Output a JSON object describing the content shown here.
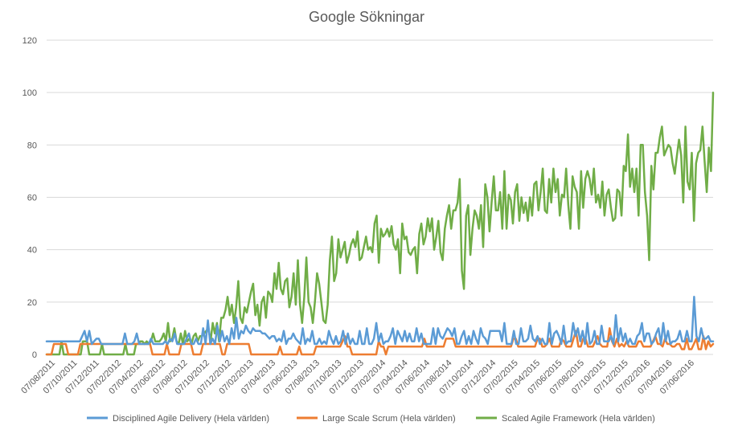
{
  "chart_data": {
    "type": "line",
    "title": "Google Sökningar",
    "xlabel": "",
    "ylabel": "",
    "ylim": [
      0,
      120
    ],
    "yticks": [
      "0",
      "20",
      "40",
      "60",
      "80",
      "100",
      "120"
    ],
    "grid": true,
    "legend_position": "bottom",
    "x_tick_labels": [
      "07/08/2011",
      "07/10/2011",
      "07/12/2011",
      "07/02/2012",
      "07/04/2012",
      "07/06/2012",
      "07/08/2012",
      "07/10/2012",
      "07/12/2012",
      "07/02/2013",
      "07/04/2013",
      "07/06/2013",
      "07/08/2013",
      "07/10/2013",
      "07/12/2013",
      "07/02/2014",
      "07/04/2014",
      "07/06/2014",
      "07/08/2014",
      "07/10/2014",
      "07/12/2014",
      "07/02/2015",
      "07/04/2015",
      "07/06/2015",
      "07/08/2015",
      "07/10/2015",
      "07/12/2015",
      "07/02/2016",
      "07/04/2016",
      "07/06/2016"
    ],
    "series": [
      {
        "name": "Disciplined Agile Delivery (Hela världen)",
        "color": "#5b9bd5",
        "values": [
          5,
          5,
          5,
          5,
          5,
          5,
          5,
          5,
          5,
          5,
          5,
          5,
          5,
          5,
          5,
          7,
          9,
          5,
          9,
          4,
          5,
          6,
          6,
          4,
          4,
          4,
          4,
          4,
          4,
          4,
          4,
          4,
          4,
          8,
          4,
          4,
          4,
          5,
          8,
          4,
          4,
          4,
          4,
          4,
          6,
          4,
          4,
          4,
          4,
          4,
          5,
          4,
          6,
          5,
          8,
          4,
          4,
          4,
          4,
          6,
          8,
          4,
          4,
          6,
          4,
          4,
          10,
          4,
          13,
          4,
          6,
          4,
          11,
          5,
          9,
          5,
          7,
          4,
          10,
          6,
          14,
          6,
          9,
          8,
          11,
          9,
          8,
          10,
          9,
          9,
          9,
          8,
          8,
          7,
          6,
          7,
          7,
          5,
          6,
          5,
          9,
          4,
          6,
          6,
          8,
          6,
          5,
          4,
          10,
          4,
          6,
          5,
          9,
          4,
          4,
          6,
          4,
          5,
          4,
          9,
          6,
          4,
          7,
          4,
          5,
          9,
          4,
          8,
          4,
          6,
          4,
          4,
          9,
          4,
          4,
          10,
          4,
          4,
          6,
          12,
          5,
          8,
          4,
          5,
          5,
          7,
          10,
          4,
          9,
          7,
          5,
          9,
          5,
          8,
          5,
          5,
          10,
          5,
          8,
          4,
          4,
          4,
          4,
          10,
          4,
          10,
          7,
          6,
          8,
          10,
          9,
          7,
          10,
          4,
          4,
          7,
          9,
          4,
          7,
          4,
          9,
          6,
          4,
          10,
          7,
          6,
          4,
          9,
          9,
          9,
          9,
          9,
          5,
          12,
          4,
          4,
          4,
          9,
          4,
          4,
          10,
          5,
          5,
          6,
          11,
          6,
          5,
          7,
          4,
          6,
          4,
          4,
          12,
          4,
          8,
          9,
          7,
          4,
          11,
          4,
          5,
          5,
          12,
          7,
          10,
          5,
          9,
          4,
          12,
          4,
          5,
          9,
          4,
          4,
          11,
          5,
          5,
          5,
          7,
          4,
          15,
          5,
          10,
          5,
          8,
          4,
          6,
          4,
          4,
          7,
          8,
          12,
          5,
          8,
          8,
          4,
          5,
          8,
          10,
          4,
          12,
          5,
          9,
          4,
          5,
          5,
          6,
          9,
          5,
          5,
          9,
          5,
          5,
          22,
          7,
          5,
          10,
          6,
          6,
          7,
          5,
          5
        ]
      },
      {
        "name": "Large Scale Scrum (Hela världen)",
        "color": "#ed7d31",
        "values": [
          0,
          0,
          0,
          4,
          4,
          4,
          4,
          4,
          4,
          0,
          0,
          0,
          0,
          0,
          4,
          4,
          4,
          4,
          4,
          4,
          4,
          4,
          4,
          4,
          4,
          4,
          4,
          4,
          4,
          4,
          4,
          4,
          4,
          4,
          4,
          4,
          4,
          4,
          4,
          4,
          4,
          4,
          4,
          4,
          0,
          0,
          0,
          0,
          0,
          0,
          4,
          0,
          0,
          0,
          0,
          0,
          4,
          4,
          4,
          4,
          4,
          0,
          0,
          0,
          0,
          4,
          4,
          4,
          4,
          4,
          4,
          4,
          4,
          0,
          0,
          4,
          4,
          4,
          4,
          4,
          4,
          4,
          4,
          4,
          4,
          0,
          0,
          0,
          0,
          0,
          0,
          0,
          0,
          0,
          0,
          0,
          0,
          3,
          0,
          0,
          0,
          0,
          0,
          0,
          0,
          3,
          0,
          0,
          0,
          0,
          0,
          0,
          3,
          3,
          3,
          3,
          3,
          3,
          3,
          3,
          3,
          3,
          3,
          5,
          7,
          3,
          3,
          0,
          0,
          0,
          0,
          0,
          0,
          0,
          0,
          0,
          0,
          0,
          5,
          3,
          3,
          0,
          3,
          3,
          3,
          3,
          3,
          3,
          3,
          3,
          3,
          3,
          3,
          3,
          3,
          3,
          3,
          6,
          3,
          3,
          3,
          3,
          3,
          3,
          3,
          3,
          6,
          6,
          6,
          6,
          3,
          3,
          3,
          3,
          3,
          3,
          3,
          3,
          3,
          3,
          3,
          3,
          3,
          3,
          3,
          3,
          3,
          3,
          3,
          3,
          3,
          3,
          3,
          3,
          6,
          6,
          3,
          3,
          3,
          3,
          3,
          3,
          3,
          3,
          6,
          6,
          3,
          3,
          4,
          6,
          3,
          3,
          3,
          3,
          6,
          5,
          3,
          3,
          3,
          6,
          9,
          3,
          3,
          6,
          6,
          3,
          3,
          3,
          5,
          7,
          4,
          3,
          3,
          3,
          10,
          5,
          3,
          6,
          3,
          4,
          3,
          5,
          3,
          3,
          3,
          3,
          5,
          5,
          3,
          3,
          3,
          3,
          5,
          7,
          4,
          4,
          3,
          6,
          4,
          4,
          3,
          3,
          4,
          4,
          2,
          2,
          6,
          2,
          2,
          4,
          6,
          2,
          2,
          7,
          2,
          5,
          3,
          4
        ]
      },
      {
        "name": "Scaled Agile Framework (Hela världen)",
        "color": "#70ad47",
        "values": [
          0,
          0,
          0,
          0,
          0,
          0,
          0,
          5,
          0,
          0,
          0,
          0,
          0,
          0,
          0,
          0,
          0,
          5,
          5,
          5,
          0,
          0,
          0,
          0,
          0,
          0,
          4,
          0,
          0,
          0,
          0,
          0,
          0,
          0,
          0,
          0,
          0,
          4,
          0,
          0,
          0,
          0,
          4,
          4,
          5,
          5,
          4,
          5,
          4,
          5,
          8,
          5,
          5,
          5,
          6,
          8,
          5,
          12,
          5,
          6,
          10,
          5,
          4,
          8,
          4,
          9,
          5,
          6,
          4,
          7,
          8,
          5,
          7,
          7,
          8,
          9,
          10,
          5,
          12,
          8,
          12,
          5,
          14,
          14,
          17,
          22,
          15,
          19,
          12,
          18,
          28,
          14,
          12,
          18,
          16,
          20,
          24,
          27,
          15,
          19,
          11,
          20,
          22,
          14,
          24,
          23,
          20,
          31,
          25,
          35,
          25,
          23,
          28,
          29,
          18,
          22,
          31,
          19,
          36,
          19,
          12,
          22,
          37,
          20,
          18,
          12,
          20,
          31,
          27,
          20,
          13,
          12,
          19,
          36,
          45,
          28,
          31,
          44,
          37,
          40,
          43,
          35,
          38,
          42,
          44,
          41,
          47,
          36,
          37,
          41,
          45,
          40,
          41,
          39,
          50,
          53,
          35,
          48,
          45,
          46,
          48,
          45,
          49,
          42,
          40,
          44,
          31,
          50,
          44,
          45,
          39,
          38,
          40,
          41,
          31,
          46,
          50,
          42,
          45,
          52,
          47,
          52,
          40,
          45,
          51,
          39,
          36,
          48,
          53,
          57,
          48,
          55,
          55,
          58,
          67,
          32,
          25,
          53,
          57,
          38,
          48,
          55,
          53,
          48,
          57,
          41,
          65,
          60,
          47,
          58,
          68,
          55,
          55,
          62,
          48,
          70,
          48,
          61,
          59,
          50,
          62,
          65,
          51,
          60,
          54,
          58,
          51,
          60,
          53,
          65,
          66,
          55,
          62,
          71,
          55,
          54,
          67,
          58,
          71,
          62,
          67,
          53,
          61,
          60,
          71,
          57,
          48,
          68,
          64,
          62,
          48,
          70,
          56,
          67,
          70,
          67,
          61,
          71,
          58,
          61,
          56,
          66,
          53,
          61,
          63,
          56,
          51,
          52,
          63,
          62,
          53,
          72,
          70,
          84,
          64,
          71,
          62,
          71,
          53,
          80,
          80,
          62,
          53,
          36,
          72,
          63,
          77,
          77,
          83,
          87,
          76,
          78,
          80,
          79,
          73,
          69,
          76,
          82,
          76,
          58,
          87,
          66,
          63,
          77,
          51,
          73,
          77,
          78,
          87,
          74,
          62,
          79,
          70,
          100
        ]
      }
    ]
  }
}
